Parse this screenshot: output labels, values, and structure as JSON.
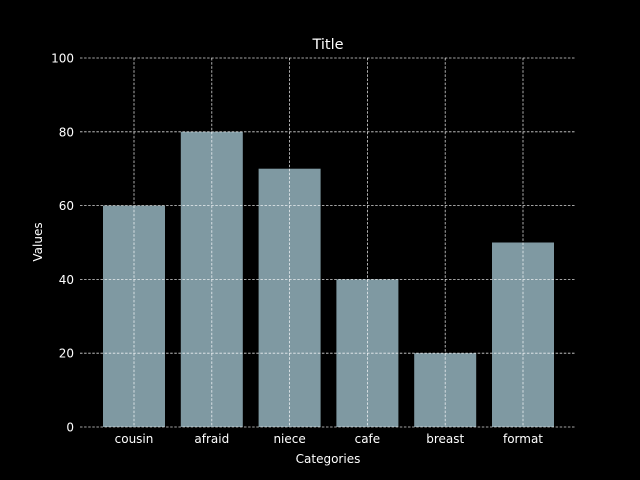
{
  "chart_data": {
    "type": "bar",
    "title": "Title",
    "xlabel": "Categories",
    "ylabel": "Values",
    "categories": [
      "cousin",
      "afraid",
      "niece",
      "cafe",
      "breast",
      "format"
    ],
    "values": [
      60,
      80,
      70,
      40,
      20,
      50
    ],
    "ylim": [
      0,
      100
    ],
    "yticks": [
      0,
      20,
      40,
      60,
      80,
      100
    ],
    "grid": true,
    "colors": {
      "background": "#000000",
      "bar": "#7f99a2",
      "text": "#ffffff",
      "grid": "#ffffff"
    }
  }
}
